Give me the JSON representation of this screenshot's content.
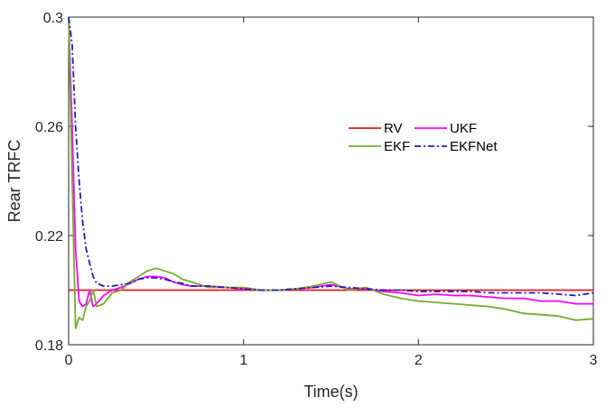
{
  "chart_data": {
    "type": "line",
    "title": "",
    "xlabel": "Time(s)",
    "ylabel": "Rear TRFC",
    "xlim": [
      0,
      3
    ],
    "ylim": [
      0.18,
      0.3
    ],
    "xticks": [
      0,
      1,
      2,
      3
    ],
    "xtick_labels": [
      "0",
      "1",
      "2",
      "3"
    ],
    "yticks": [
      0.18,
      0.22,
      0.26,
      0.3
    ],
    "ytick_labels": [
      "0.18",
      "0.22",
      "0.26",
      "0.3"
    ],
    "grid": false,
    "legend_position": "upper-right-inside",
    "series": [
      {
        "name": "RV",
        "color": "#e41a1c",
        "dash": "solid",
        "x": [
          0,
          3
        ],
        "y": [
          0.2,
          0.2
        ]
      },
      {
        "name": "UKF",
        "color": "#ff00ff",
        "dash": "solid",
        "x": [
          0,
          0.02,
          0.04,
          0.06,
          0.08,
          0.1,
          0.12,
          0.14,
          0.16,
          0.2,
          0.25,
          0.3,
          0.35,
          0.4,
          0.45,
          0.5,
          0.55,
          0.6,
          0.65,
          0.7,
          0.8,
          0.9,
          1.0,
          1.1,
          1.2,
          1.3,
          1.4,
          1.5,
          1.6,
          1.7,
          1.8,
          1.9,
          2.0,
          2.1,
          2.2,
          2.3,
          2.4,
          2.5,
          2.6,
          2.7,
          2.8,
          2.9,
          3.0
        ],
        "y": [
          0.3,
          0.26,
          0.215,
          0.196,
          0.194,
          0.195,
          0.2,
          0.194,
          0.195,
          0.198,
          0.2,
          0.201,
          0.2025,
          0.204,
          0.205,
          0.205,
          0.2045,
          0.203,
          0.202,
          0.2015,
          0.2015,
          0.201,
          0.2005,
          0.2,
          0.2,
          0.2005,
          0.201,
          0.202,
          0.2005,
          0.2005,
          0.1995,
          0.199,
          0.198,
          0.1985,
          0.198,
          0.198,
          0.1975,
          0.197,
          0.197,
          0.196,
          0.196,
          0.195,
          0.195
        ]
      },
      {
        "name": "EKF",
        "color": "#77ac30",
        "dash": "solid",
        "x": [
          0,
          0.02,
          0.04,
          0.06,
          0.08,
          0.1,
          0.12,
          0.14,
          0.16,
          0.2,
          0.25,
          0.3,
          0.35,
          0.4,
          0.45,
          0.5,
          0.55,
          0.6,
          0.65,
          0.7,
          0.8,
          0.9,
          1.0,
          1.1,
          1.2,
          1.3,
          1.4,
          1.5,
          1.6,
          1.7,
          1.8,
          1.9,
          2.0,
          2.1,
          2.2,
          2.3,
          2.4,
          2.5,
          2.6,
          2.7,
          2.8,
          2.9,
          3.0
        ],
        "y": [
          0.3,
          0.24,
          0.186,
          0.19,
          0.189,
          0.194,
          0.196,
          0.2,
          0.194,
          0.195,
          0.199,
          0.2,
          0.203,
          0.205,
          0.207,
          0.208,
          0.207,
          0.206,
          0.204,
          0.203,
          0.201,
          0.201,
          0.201,
          0.2,
          0.2,
          0.2005,
          0.2015,
          0.203,
          0.2,
          0.201,
          0.1985,
          0.197,
          0.196,
          0.1955,
          0.195,
          0.1945,
          0.194,
          0.193,
          0.1915,
          0.191,
          0.1905,
          0.189,
          0.1895
        ]
      },
      {
        "name": "EKFNet",
        "color": "#1f1fbf",
        "dash": "dashdot",
        "x": [
          0,
          0.02,
          0.04,
          0.06,
          0.08,
          0.1,
          0.12,
          0.14,
          0.16,
          0.2,
          0.25,
          0.3,
          0.35,
          0.4,
          0.45,
          0.5,
          0.55,
          0.6,
          0.65,
          0.7,
          0.8,
          0.9,
          1.0,
          1.1,
          1.2,
          1.3,
          1.4,
          1.5,
          1.6,
          1.7,
          1.8,
          1.9,
          2.0,
          2.1,
          2.2,
          2.3,
          2.4,
          2.5,
          2.6,
          2.7,
          2.8,
          2.9,
          3.0
        ],
        "y": [
          0.3,
          0.29,
          0.26,
          0.24,
          0.225,
          0.215,
          0.21,
          0.205,
          0.2025,
          0.2015,
          0.2015,
          0.202,
          0.2025,
          0.204,
          0.2045,
          0.2045,
          0.204,
          0.203,
          0.2025,
          0.2015,
          0.2015,
          0.201,
          0.2005,
          0.2,
          0.2,
          0.2005,
          0.201,
          0.2015,
          0.201,
          0.2005,
          0.2,
          0.2,
          0.1995,
          0.1995,
          0.1995,
          0.1995,
          0.199,
          0.199,
          0.199,
          0.199,
          0.1985,
          0.198,
          0.199
        ]
      }
    ]
  }
}
